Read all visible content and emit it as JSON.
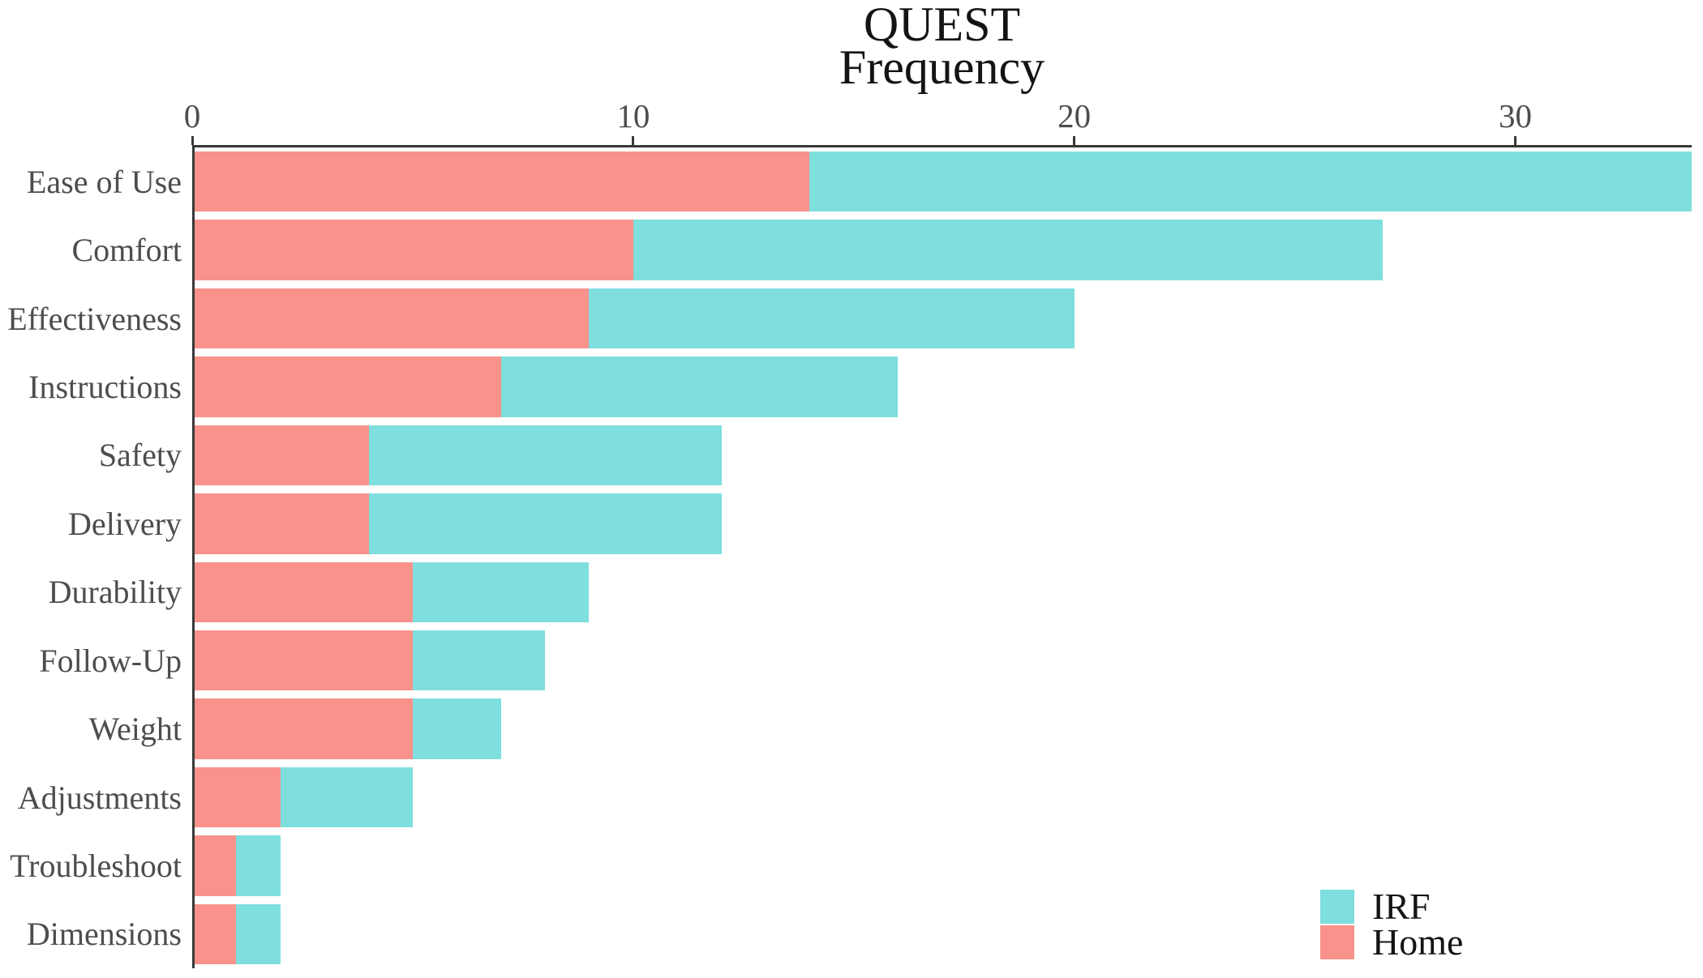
{
  "chart_data": {
    "type": "bar",
    "orientation": "horizontal",
    "stacked": true,
    "title": "QUEST",
    "subtitle": "Frequency",
    "categories": [
      "Ease of Use",
      "Comfort",
      "Effectiveness",
      "Instructions",
      "Safety",
      "Delivery",
      "Durability",
      "Follow-Up",
      "Weight",
      "Adjustments",
      "Troubleshoot",
      "Dimensions"
    ],
    "series": [
      {
        "name": "Home",
        "color": "#F8928B",
        "values": [
          14,
          10,
          9,
          7,
          4,
          4,
          5,
          5,
          5,
          2,
          1,
          1
        ]
      },
      {
        "name": "IRF",
        "color": "#7FDEDE",
        "values": [
          20,
          17,
          11,
          9,
          8,
          8,
          4,
          3,
          2,
          3,
          1,
          1
        ]
      }
    ],
    "totals": [
      34,
      27,
      20,
      16,
      12,
      12,
      9,
      8,
      7,
      5,
      2,
      2
    ],
    "x_axis": {
      "position": "top",
      "min": 0,
      "max": 34,
      "ticks": [
        0,
        10,
        20,
        30
      ]
    },
    "legend": {
      "position": "bottom-right",
      "entries": [
        {
          "label": "IRF",
          "color": "#7FDEDE"
        },
        {
          "label": "Home",
          "color": "#F8928B"
        }
      ]
    },
    "grid": false,
    "axis_color": "#383838",
    "text_color": "#4d4d4d",
    "title_color": "#141414",
    "background": "#ffffff"
  }
}
